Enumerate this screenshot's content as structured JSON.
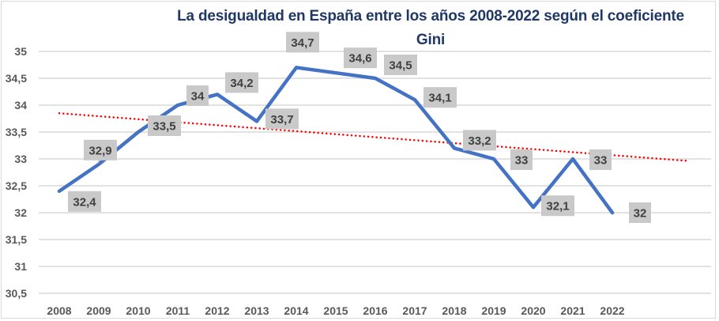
{
  "chart_data": {
    "type": "line",
    "title": "La desigualdad en España entre los años 2008-2022 según el coeficiente Gini",
    "title_lines": [
      "La desigualdad en España entre los años 2008-2022 según el coeficiente",
      "Gini"
    ],
    "xlabel": "",
    "ylabel": "",
    "categories": [
      "2008",
      "2009",
      "2010",
      "2011",
      "2012",
      "2013",
      "2014",
      "2015",
      "2016",
      "2017",
      "2018",
      "2019",
      "2020",
      "2021",
      "2022"
    ],
    "series": [
      {
        "name": "Coeficiente Gini",
        "color": "#4472c4",
        "values": [
          32.4,
          32.9,
          33.5,
          34.0,
          34.2,
          33.7,
          34.7,
          34.6,
          34.5,
          34.1,
          33.2,
          33.0,
          32.1,
          33.0,
          32.0
        ],
        "data_labels": [
          "32,4",
          "32,9",
          "33,5",
          "34",
          "34,2",
          "33,7",
          "34,7",
          "34,6",
          "34,5",
          "34,1",
          "33,2",
          "33",
          "32,1",
          "33",
          "32"
        ]
      }
    ],
    "trendline": {
      "type": "linear",
      "style": "dotted",
      "color": "#ff0000",
      "forward_forecast_periods": 1
    },
    "ylim": [
      30.5,
      35
    ],
    "yticks": [
      "35",
      "34,5",
      "34",
      "33,5",
      "33",
      "32,5",
      "32",
      "31,5",
      "31",
      "30,5"
    ],
    "ytick_values": [
      35,
      34.5,
      34,
      33.5,
      33,
      32.5,
      32,
      31.5,
      31,
      30.5
    ],
    "grid": true,
    "legend": "none",
    "label_box_color": "#c9c9c9"
  }
}
